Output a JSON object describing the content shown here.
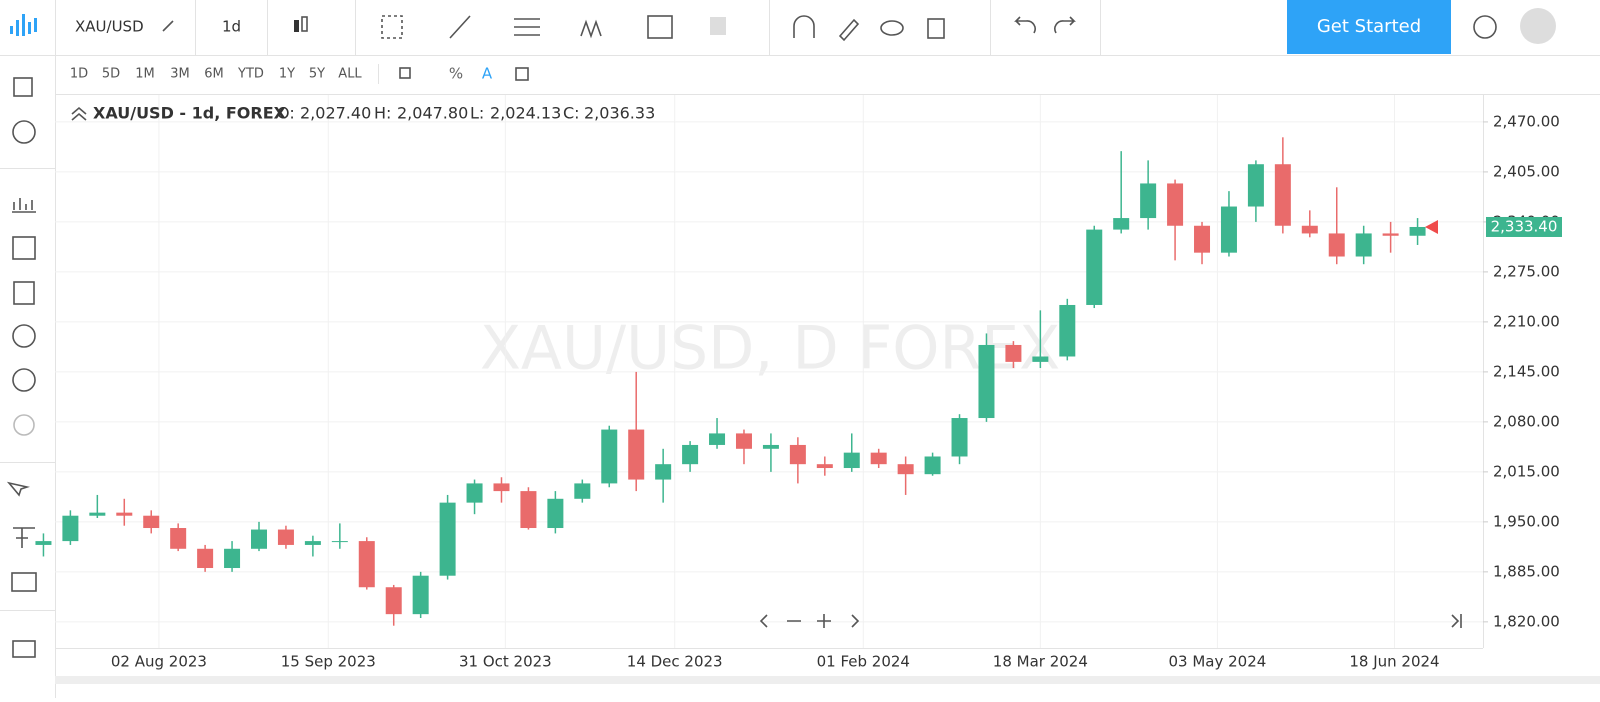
{
  "ui": {
    "symbol": "XAU/USD",
    "interval": "1d",
    "get_started": "Get Started",
    "ranges": [
      "1D",
      "5D",
      "1M",
      "3M",
      "6M",
      "YTD",
      "1Y",
      "5Y",
      "ALL"
    ],
    "legend": {
      "title": "XAU/USD - 1d, FOREX",
      "o_label": "O:",
      "o": "2,027.40",
      "h_label": "H:",
      "h": "2,047.80",
      "l_label": "L:",
      "l": "2,024.13",
      "c_label": "C:",
      "c": "2,036.33"
    },
    "watermark": "XAU/USD, D FOREX"
  },
  "chart_data": {
    "type": "candlestick",
    "x": [
      "2023-07-03",
      "2023-07-10",
      "2023-07-17",
      "2023-07-24",
      "2023-07-31",
      "2023-08-07",
      "2023-08-14",
      "2023-08-21",
      "2023-08-28",
      "2023-09-04",
      "2023-09-11",
      "2023-09-18",
      "2023-09-25",
      "2023-10-02",
      "2023-10-09",
      "2023-10-16",
      "2023-10-23",
      "2023-10-30",
      "2023-11-06",
      "2023-11-13",
      "2023-11-20",
      "2023-11-27",
      "2023-12-04",
      "2023-12-11",
      "2023-12-18",
      "2023-12-25",
      "2024-01-01",
      "2024-01-08",
      "2024-01-15",
      "2024-01-22",
      "2024-01-29",
      "2024-02-05",
      "2024-02-12",
      "2024-02-19",
      "2024-02-26",
      "2024-03-04",
      "2024-03-11",
      "2024-03-18",
      "2024-03-25",
      "2024-04-01",
      "2024-04-08",
      "2024-04-15",
      "2024-04-22",
      "2024-04-29",
      "2024-05-06",
      "2024-05-13",
      "2024-05-20",
      "2024-05-27",
      "2024-06-03",
      "2024-06-10",
      "2024-06-17",
      "2024-06-24"
    ],
    "open": [
      1920,
      1925,
      1958,
      1962,
      1958,
      1942,
      1915,
      1890,
      1915,
      1940,
      1920,
      1925,
      1925,
      1865,
      1830,
      1880,
      1975,
      2000,
      1990,
      1942,
      1980,
      2000,
      2070,
      2005,
      2025,
      2050,
      2065,
      2045,
      2050,
      2025,
      2020,
      2040,
      2025,
      2012,
      2035,
      2085,
      2180,
      2158,
      2165,
      2232,
      2330,
      2345,
      2390,
      2335,
      2300,
      2360,
      2415,
      2335,
      2325,
      2295,
      2325,
      2322
    ],
    "high": [
      1935,
      1965,
      1985,
      1980,
      1965,
      1948,
      1920,
      1925,
      1950,
      1945,
      1932,
      1948,
      1930,
      1868,
      1885,
      1985,
      2005,
      2008,
      1995,
      1990,
      2005,
      2075,
      2145,
      2045,
      2055,
      2085,
      2070,
      2065,
      2060,
      2035,
      2065,
      2045,
      2035,
      2040,
      2090,
      2195,
      2185,
      2225,
      2240,
      2335,
      2432,
      2420,
      2395,
      2340,
      2380,
      2420,
      2450,
      2355,
      2385,
      2335,
      2340,
      2345
    ],
    "low": [
      1905,
      1920,
      1955,
      1945,
      1935,
      1912,
      1885,
      1885,
      1912,
      1915,
      1905,
      1915,
      1862,
      1815,
      1825,
      1875,
      1960,
      1975,
      1940,
      1935,
      1975,
      1995,
      1990,
      1975,
      2015,
      2045,
      2025,
      2015,
      2000,
      2010,
      2015,
      2020,
      1985,
      2010,
      2025,
      2080,
      2150,
      2150,
      2160,
      2228,
      2325,
      2330,
      2290,
      2285,
      2295,
      2340,
      2325,
      2320,
      2285,
      2285,
      2300,
      2310
    ],
    "close": [
      1925,
      1958,
      1962,
      1958,
      1942,
      1915,
      1890,
      1915,
      1940,
      1920,
      1925,
      1925,
      1865,
      1830,
      1880,
      1975,
      2000,
      1990,
      1942,
      1980,
      2000,
      2070,
      2005,
      2025,
      2050,
      2065,
      2045,
      2050,
      2025,
      2020,
      2040,
      2025,
      2012,
      2035,
      2085,
      2180,
      2158,
      2165,
      2232,
      2330,
      2345,
      2390,
      2335,
      2300,
      2360,
      2415,
      2335,
      2325,
      2295,
      2325,
      2322,
      2333.4
    ],
    "up_color": "#3db58f",
    "down_color": "#e96b6b",
    "xlim": [
      "2023-07-06",
      "2024-07-11"
    ],
    "xticks": [
      {
        "value": "2023-08-02",
        "label": "02 Aug 2023"
      },
      {
        "value": "2023-09-15",
        "label": "15 Sep 2023"
      },
      {
        "value": "2023-10-31",
        "label": "31 Oct 2023"
      },
      {
        "value": "2023-12-14",
        "label": "14 Dec 2023"
      },
      {
        "value": "2024-02-01",
        "label": "01 Feb 2024"
      },
      {
        "value": "2024-03-18",
        "label": "18 Mar 2024"
      },
      {
        "value": "2024-05-03",
        "label": "03 May 2024"
      },
      {
        "value": "2024-06-18",
        "label": "18 Jun 2024"
      }
    ],
    "ylim": [
      1786,
      2505
    ],
    "yticks": [
      {
        "value": 1820,
        "label": "1,820.00"
      },
      {
        "value": 1885,
        "label": "1,885.00"
      },
      {
        "value": 1950,
        "label": "1,950.00"
      },
      {
        "value": 2015,
        "label": "2,015.00"
      },
      {
        "value": 2080,
        "label": "2,080.00"
      },
      {
        "value": 2145,
        "label": "2,145.00"
      },
      {
        "value": 2210,
        "label": "2,210.00"
      },
      {
        "value": 2275,
        "label": "2,275.00"
      },
      {
        "value": 2340,
        "label": "2,340.00"
      },
      {
        "value": 2405,
        "label": "2,405.00"
      },
      {
        "value": 2470,
        "label": "2,470.00"
      }
    ],
    "grid": true,
    "last_price_label": "2,333.40"
  }
}
